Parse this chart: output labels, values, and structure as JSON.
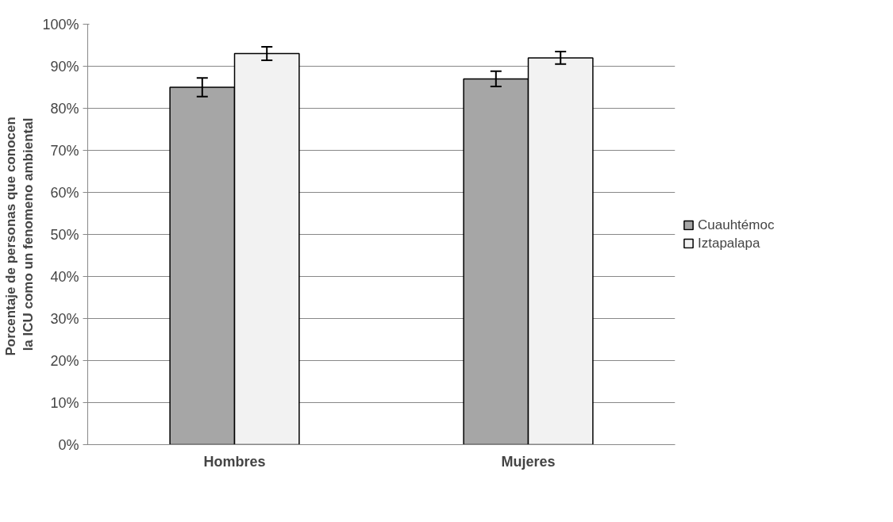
{
  "chart_data": {
    "type": "bar",
    "ylabel": "Porcentaje de personas que  conocen\nla ICU como un fenomeno ambiental",
    "categories": [
      "Hombres",
      "Mujeres"
    ],
    "series": [
      {
        "name": "Cuauhtémoc",
        "color": "#a6a6a6",
        "values": [
          85,
          87
        ],
        "errors": [
          2.2,
          1.8
        ]
      },
      {
        "name": "Iztapalapa",
        "color": "#f2f2f2",
        "values": [
          93,
          92
        ],
        "errors": [
          1.6,
          1.5
        ]
      }
    ],
    "ylim": [
      0,
      100
    ],
    "yticks": [
      {
        "value": 0,
        "label": "0%"
      },
      {
        "value": 10,
        "label": "10%"
      },
      {
        "value": 20,
        "label": "20%"
      },
      {
        "value": 30,
        "label": "30%"
      },
      {
        "value": 40,
        "label": "40%"
      },
      {
        "value": 50,
        "label": "50%"
      },
      {
        "value": 60,
        "label": "60%"
      },
      {
        "value": 70,
        "label": "70%"
      },
      {
        "value": 80,
        "label": "80%"
      },
      {
        "value": 90,
        "label": "90%"
      },
      {
        "value": 100,
        "label": "100%"
      }
    ],
    "grid": "y",
    "legend": "right"
  }
}
